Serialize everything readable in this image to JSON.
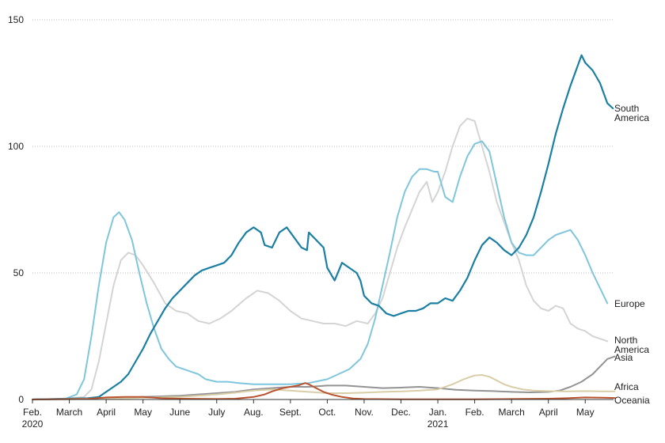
{
  "chart_data": {
    "type": "line",
    "title": "",
    "xlabel": "",
    "ylabel": "",
    "ylim": [
      0,
      150
    ],
    "yticks": [
      0,
      50,
      100,
      150
    ],
    "grid": "horizontal dotted",
    "x_ticks": [
      {
        "month": 0,
        "label": "Feb.",
        "sublabel": "2020"
      },
      {
        "month": 1,
        "label": "March",
        "sublabel": ""
      },
      {
        "month": 2,
        "label": "April",
        "sublabel": ""
      },
      {
        "month": 3,
        "label": "May",
        "sublabel": ""
      },
      {
        "month": 4,
        "label": "June",
        "sublabel": ""
      },
      {
        "month": 5,
        "label": "July",
        "sublabel": ""
      },
      {
        "month": 6,
        "label": "Aug.",
        "sublabel": ""
      },
      {
        "month": 7,
        "label": "Sept.",
        "sublabel": ""
      },
      {
        "month": 8,
        "label": "Oct.",
        "sublabel": ""
      },
      {
        "month": 9,
        "label": "Nov.",
        "sublabel": ""
      },
      {
        "month": 10,
        "label": "Dec.",
        "sublabel": ""
      },
      {
        "month": 11,
        "label": "Jan.",
        "sublabel": "2021"
      },
      {
        "month": 12,
        "label": "Feb.",
        "sublabel": ""
      },
      {
        "month": 13,
        "label": "March",
        "sublabel": ""
      },
      {
        "month": 14,
        "label": "April",
        "sublabel": ""
      },
      {
        "month": 15,
        "label": "May",
        "sublabel": ""
      }
    ],
    "xlim_months": [
      0,
      15.7
    ],
    "series": [
      {
        "name": "North America",
        "label_lines": [
          "North",
          "America"
        ],
        "color": "#d4d4d4",
        "points": [
          [
            0,
            0
          ],
          [
            0.9,
            0.3
          ],
          [
            1.4,
            1
          ],
          [
            1.6,
            4
          ],
          [
            1.8,
            15
          ],
          [
            2.0,
            30
          ],
          [
            2.2,
            45
          ],
          [
            2.4,
            55
          ],
          [
            2.6,
            58
          ],
          [
            2.8,
            57
          ],
          [
            3.0,
            53
          ],
          [
            3.3,
            46
          ],
          [
            3.6,
            38
          ],
          [
            3.9,
            35
          ],
          [
            4.2,
            34
          ],
          [
            4.5,
            31
          ],
          [
            4.8,
            30
          ],
          [
            5.1,
            32
          ],
          [
            5.4,
            35
          ],
          [
            5.8,
            40
          ],
          [
            6.1,
            43
          ],
          [
            6.4,
            42
          ],
          [
            6.7,
            39
          ],
          [
            7.0,
            35
          ],
          [
            7.3,
            32
          ],
          [
            7.6,
            31
          ],
          [
            7.9,
            30
          ],
          [
            8.2,
            30
          ],
          [
            8.5,
            29
          ],
          [
            8.8,
            31
          ],
          [
            9.1,
            30
          ],
          [
            9.3,
            34
          ],
          [
            9.5,
            40
          ],
          [
            9.7,
            50
          ],
          [
            9.9,
            60
          ],
          [
            10.1,
            68
          ],
          [
            10.3,
            75
          ],
          [
            10.5,
            82
          ],
          [
            10.7,
            86
          ],
          [
            10.85,
            78
          ],
          [
            11.0,
            82
          ],
          [
            11.2,
            90
          ],
          [
            11.4,
            100
          ],
          [
            11.6,
            108
          ],
          [
            11.8,
            111
          ],
          [
            12.0,
            110
          ],
          [
            12.2,
            100
          ],
          [
            12.4,
            90
          ],
          [
            12.6,
            78
          ],
          [
            12.8,
            70
          ],
          [
            13.0,
            62
          ],
          [
            13.2,
            55
          ],
          [
            13.4,
            45
          ],
          [
            13.6,
            39
          ],
          [
            13.8,
            36
          ],
          [
            14.0,
            35
          ],
          [
            14.2,
            37
          ],
          [
            14.4,
            36
          ],
          [
            14.6,
            30
          ],
          [
            14.8,
            28
          ],
          [
            15.0,
            27
          ],
          [
            15.2,
            25
          ],
          [
            15.4,
            24
          ],
          [
            15.6,
            23
          ]
        ]
      },
      {
        "name": "Europe",
        "label_lines": [
          "Europe"
        ],
        "color": "#7fc6dd",
        "points": [
          [
            0,
            0
          ],
          [
            0.9,
            0.3
          ],
          [
            1.2,
            2
          ],
          [
            1.4,
            8
          ],
          [
            1.6,
            25
          ],
          [
            1.8,
            45
          ],
          [
            2.0,
            62
          ],
          [
            2.2,
            72
          ],
          [
            2.35,
            74
          ],
          [
            2.5,
            71
          ],
          [
            2.7,
            63
          ],
          [
            2.9,
            50
          ],
          [
            3.1,
            38
          ],
          [
            3.3,
            28
          ],
          [
            3.5,
            20
          ],
          [
            3.7,
            16
          ],
          [
            3.9,
            13
          ],
          [
            4.1,
            12
          ],
          [
            4.3,
            11
          ],
          [
            4.5,
            10
          ],
          [
            4.7,
            8
          ],
          [
            5.0,
            7
          ],
          [
            5.3,
            7
          ],
          [
            5.6,
            6.5
          ],
          [
            6.0,
            6
          ],
          [
            6.5,
            6
          ],
          [
            7.0,
            6
          ],
          [
            7.5,
            6.5
          ],
          [
            8.0,
            8
          ],
          [
            8.3,
            10
          ],
          [
            8.6,
            12
          ],
          [
            8.9,
            16
          ],
          [
            9.1,
            22
          ],
          [
            9.3,
            32
          ],
          [
            9.5,
            45
          ],
          [
            9.7,
            58
          ],
          [
            9.9,
            72
          ],
          [
            10.1,
            82
          ],
          [
            10.3,
            88
          ],
          [
            10.5,
            91
          ],
          [
            10.7,
            91
          ],
          [
            10.9,
            90
          ],
          [
            11.0,
            90
          ],
          [
            11.2,
            80
          ],
          [
            11.4,
            78
          ],
          [
            11.6,
            88
          ],
          [
            11.8,
            96
          ],
          [
            12.0,
            101
          ],
          [
            12.2,
            102
          ],
          [
            12.4,
            98
          ],
          [
            12.6,
            85
          ],
          [
            12.8,
            72
          ],
          [
            13.0,
            62
          ],
          [
            13.2,
            58
          ],
          [
            13.4,
            57
          ],
          [
            13.6,
            57
          ],
          [
            13.8,
            60
          ],
          [
            14.0,
            63
          ],
          [
            14.2,
            65
          ],
          [
            14.4,
            66
          ],
          [
            14.6,
            67
          ],
          [
            14.8,
            63
          ],
          [
            15.0,
            57
          ],
          [
            15.2,
            50
          ],
          [
            15.4,
            44
          ],
          [
            15.6,
            38
          ]
        ]
      },
      {
        "name": "South America",
        "label_lines": [
          "South",
          "America"
        ],
        "color": "#1b7ea3",
        "points": [
          [
            0,
            0
          ],
          [
            1.5,
            0.5
          ],
          [
            1.8,
            1
          ],
          [
            2.0,
            3
          ],
          [
            2.2,
            5
          ],
          [
            2.4,
            7
          ],
          [
            2.6,
            10
          ],
          [
            2.8,
            15
          ],
          [
            3.0,
            20
          ],
          [
            3.2,
            26
          ],
          [
            3.4,
            31
          ],
          [
            3.6,
            36
          ],
          [
            3.8,
            40
          ],
          [
            4.0,
            43
          ],
          [
            4.2,
            46
          ],
          [
            4.4,
            49
          ],
          [
            4.6,
            51
          ],
          [
            4.8,
            52
          ],
          [
            5.0,
            53
          ],
          [
            5.2,
            54
          ],
          [
            5.4,
            57
          ],
          [
            5.6,
            62
          ],
          [
            5.8,
            66
          ],
          [
            6.0,
            68
          ],
          [
            6.2,
            66
          ],
          [
            6.3,
            61
          ],
          [
            6.5,
            60
          ],
          [
            6.7,
            66
          ],
          [
            6.9,
            68
          ],
          [
            7.1,
            64
          ],
          [
            7.3,
            60
          ],
          [
            7.45,
            59
          ],
          [
            7.5,
            66
          ],
          [
            7.7,
            63
          ],
          [
            7.9,
            60
          ],
          [
            8.0,
            52
          ],
          [
            8.2,
            47
          ],
          [
            8.4,
            54
          ],
          [
            8.6,
            52
          ],
          [
            8.8,
            50
          ],
          [
            8.9,
            47
          ],
          [
            9.0,
            41
          ],
          [
            9.2,
            38
          ],
          [
            9.4,
            37
          ],
          [
            9.6,
            34
          ],
          [
            9.8,
            33
          ],
          [
            10.0,
            34
          ],
          [
            10.2,
            35
          ],
          [
            10.4,
            35
          ],
          [
            10.6,
            36
          ],
          [
            10.8,
            38
          ],
          [
            11.0,
            38
          ],
          [
            11.2,
            40
          ],
          [
            11.4,
            39
          ],
          [
            11.6,
            43
          ],
          [
            11.8,
            48
          ],
          [
            12.0,
            55
          ],
          [
            12.2,
            61
          ],
          [
            12.4,
            64
          ],
          [
            12.6,
            62
          ],
          [
            12.8,
            59
          ],
          [
            13.0,
            57
          ],
          [
            13.2,
            60
          ],
          [
            13.4,
            65
          ],
          [
            13.6,
            72
          ],
          [
            13.8,
            82
          ],
          [
            14.0,
            93
          ],
          [
            14.2,
            105
          ],
          [
            14.4,
            115
          ],
          [
            14.6,
            124
          ],
          [
            14.8,
            132
          ],
          [
            14.9,
            136
          ],
          [
            15.0,
            133
          ],
          [
            15.2,
            130
          ],
          [
            15.4,
            125
          ],
          [
            15.6,
            117
          ],
          [
            15.75,
            115
          ]
        ]
      },
      {
        "name": "Asia",
        "label_lines": [
          "Asia"
        ],
        "color": "#939393",
        "points": [
          [
            0,
            0
          ],
          [
            2.0,
            0.5
          ],
          [
            3.0,
            1
          ],
          [
            4.0,
            1.5
          ],
          [
            5.0,
            2.5
          ],
          [
            5.5,
            3
          ],
          [
            6.0,
            4
          ],
          [
            6.5,
            4.5
          ],
          [
            7.0,
            5
          ],
          [
            7.5,
            5
          ],
          [
            8.0,
            5.5
          ],
          [
            8.5,
            5.5
          ],
          [
            9.0,
            5
          ],
          [
            9.5,
            4.5
          ],
          [
            10.0,
            4.7
          ],
          [
            10.5,
            5
          ],
          [
            11.0,
            4.5
          ],
          [
            11.5,
            3.8
          ],
          [
            12.0,
            3.5
          ],
          [
            12.5,
            3.3
          ],
          [
            13.0,
            3
          ],
          [
            13.5,
            2.8
          ],
          [
            14.0,
            3
          ],
          [
            14.3,
            3.5
          ],
          [
            14.6,
            5
          ],
          [
            14.9,
            7
          ],
          [
            15.2,
            10
          ],
          [
            15.4,
            13
          ],
          [
            15.6,
            16
          ],
          [
            15.8,
            17
          ]
        ]
      },
      {
        "name": "Africa",
        "label_lines": [
          "Africa"
        ],
        "color": "#d9cda8",
        "points": [
          [
            0,
            0
          ],
          [
            2.0,
            0.3
          ],
          [
            3.0,
            0.7
          ],
          [
            4.0,
            1
          ],
          [
            5.0,
            2
          ],
          [
            5.5,
            2.7
          ],
          [
            6.0,
            3.5
          ],
          [
            6.5,
            4
          ],
          [
            7.0,
            3.5
          ],
          [
            7.5,
            3
          ],
          [
            8.0,
            2.5
          ],
          [
            8.5,
            2.5
          ],
          [
            9.0,
            2.7
          ],
          [
            9.5,
            3
          ],
          [
            10.0,
            3.2
          ],
          [
            10.5,
            3.5
          ],
          [
            11.0,
            4
          ],
          [
            11.4,
            6
          ],
          [
            11.7,
            8
          ],
          [
            12.0,
            9.5
          ],
          [
            12.2,
            9.7
          ],
          [
            12.4,
            9
          ],
          [
            12.6,
            7.5
          ],
          [
            12.8,
            6
          ],
          [
            13.0,
            5
          ],
          [
            13.3,
            4
          ],
          [
            13.6,
            3.5
          ],
          [
            14.0,
            3.3
          ],
          [
            14.5,
            3.2
          ],
          [
            15.0,
            3.3
          ],
          [
            15.5,
            3.2
          ],
          [
            15.8,
            3.2
          ]
        ]
      },
      {
        "name": "Oceania",
        "label_lines": [
          "Oceania"
        ],
        "color": "#b9532f",
        "points": [
          [
            0,
            0
          ],
          [
            1.5,
            0.2
          ],
          [
            2.0,
            0.8
          ],
          [
            2.5,
            1
          ],
          [
            3.0,
            1
          ],
          [
            3.5,
            0.5
          ],
          [
            4.0,
            0.3
          ],
          [
            5.0,
            0.2
          ],
          [
            5.5,
            0.3
          ],
          [
            6.0,
            1
          ],
          [
            6.3,
            2
          ],
          [
            6.5,
            3.2
          ],
          [
            6.8,
            4.5
          ],
          [
            7.0,
            5
          ],
          [
            7.2,
            5.5
          ],
          [
            7.4,
            6.5
          ],
          [
            7.5,
            6
          ],
          [
            7.7,
            4.5
          ],
          [
            7.9,
            3
          ],
          [
            8.1,
            2
          ],
          [
            8.4,
            1
          ],
          [
            8.7,
            0.4
          ],
          [
            9.0,
            0.2
          ],
          [
            10.0,
            0.1
          ],
          [
            11.0,
            0.1
          ],
          [
            12.0,
            0.1
          ],
          [
            13.0,
            0.2
          ],
          [
            14.0,
            0.3
          ],
          [
            14.5,
            0.5
          ],
          [
            15.0,
            0.8
          ],
          [
            15.5,
            0.7
          ],
          [
            15.8,
            0.6
          ]
        ]
      }
    ]
  }
}
